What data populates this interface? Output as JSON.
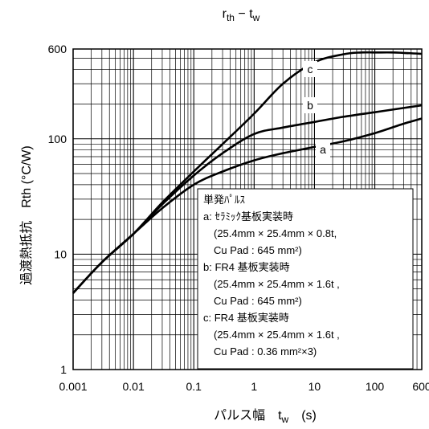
{
  "chart_data": {
    "type": "line",
    "title_main": "r",
    "title_sub": "th",
    "title_mid": " − t",
    "title_sub2": "w",
    "xlabel": {
      "main": "パルス幅　t",
      "sub": "w",
      "unit": "　(s)"
    },
    "ylabel": "過渡熱抵抗　Rth (°C/W)",
    "xscale": "log",
    "yscale": "log",
    "xlim": [
      0.001,
      600
    ],
    "ylim": [
      1,
      600
    ],
    "x_ticks": [
      "0.001",
      "0.01",
      "0.1",
      "1",
      "10",
      "100",
      "600"
    ],
    "x_tick_values": [
      0.001,
      0.01,
      0.1,
      1,
      10,
      100,
      600
    ],
    "y_ticks": [
      "1",
      "10",
      "100",
      "600"
    ],
    "y_tick_values": [
      1,
      10,
      100,
      600
    ],
    "grid": true,
    "series": [
      {
        "name": "a",
        "x": [
          0.001,
          0.003,
          0.01,
          0.03,
          0.1,
          0.3,
          1,
          3,
          10,
          30,
          100,
          300,
          600
        ],
        "y": [
          4.6,
          8.5,
          15,
          25,
          40,
          52,
          65,
          75,
          85,
          95,
          112,
          135,
          150
        ]
      },
      {
        "name": "b",
        "x": [
          0.001,
          0.003,
          0.01,
          0.03,
          0.1,
          0.3,
          1,
          3,
          10,
          30,
          100,
          300,
          600
        ],
        "y": [
          4.6,
          8.5,
          15,
          27,
          48,
          75,
          110,
          125,
          140,
          155,
          170,
          185,
          195
        ]
      },
      {
        "name": "c",
        "x": [
          0.001,
          0.003,
          0.01,
          0.03,
          0.1,
          0.3,
          1,
          3,
          10,
          30,
          60,
          100,
          200,
          300,
          600
        ],
        "y": [
          4.6,
          8.5,
          15,
          28,
          52,
          90,
          165,
          300,
          460,
          540,
          560,
          560,
          560,
          555,
          545
        ]
      }
    ],
    "legend_box": {
      "title": "単発ﾊﾟﾙｽ",
      "lines": [
        "a: ｾﾗﾐｯｸ基板実装時",
        "(25.4mm × 25.4mm × 0.8t,",
        "Cu Pad : 645 mm²)",
        "b: FR4 基板実装時",
        "(25.4mm × 25.4mm × 1.6t ,",
        "Cu Pad : 645 mm²)",
        "c: FR4 基板実装時",
        "(25.4mm × 25.4mm × 1.6t ,",
        "Cu Pad : 0.36 mm²×3)"
      ]
    },
    "colors": {
      "line": "#000000",
      "grid": "#000000",
      "background": "#ffffff"
    }
  }
}
